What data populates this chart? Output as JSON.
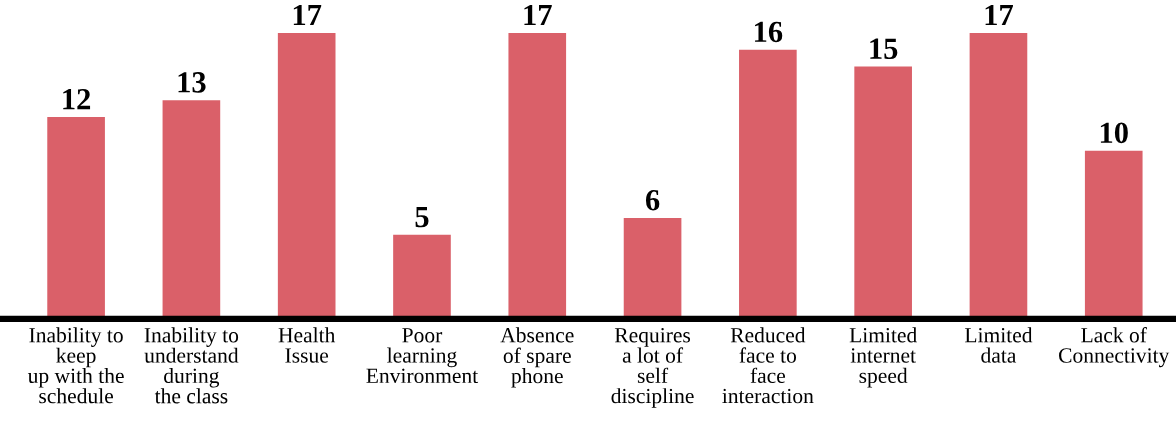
{
  "chart_data": {
    "type": "bar",
    "categories": [
      "Inability to\nkeep\nup with the\nschedule",
      "Inability to\nunderstand\nduring\nthe class",
      "Health\nIssue",
      "Poor\nlearning\nEnvironment",
      "Absence\nof spare\nphone",
      "Requires\na lot of\nself\ndiscipline",
      "Reduced\nface to\nface\ninteraction",
      "Limited\ninternet\nspeed",
      "Limited\ndata",
      "Lack of\nConnectivity"
    ],
    "values": [
      12,
      13,
      17,
      5,
      17,
      6,
      16,
      15,
      17,
      10
    ],
    "color": "#da6069",
    "data_labels": true,
    "grid": false,
    "legend": false
  }
}
